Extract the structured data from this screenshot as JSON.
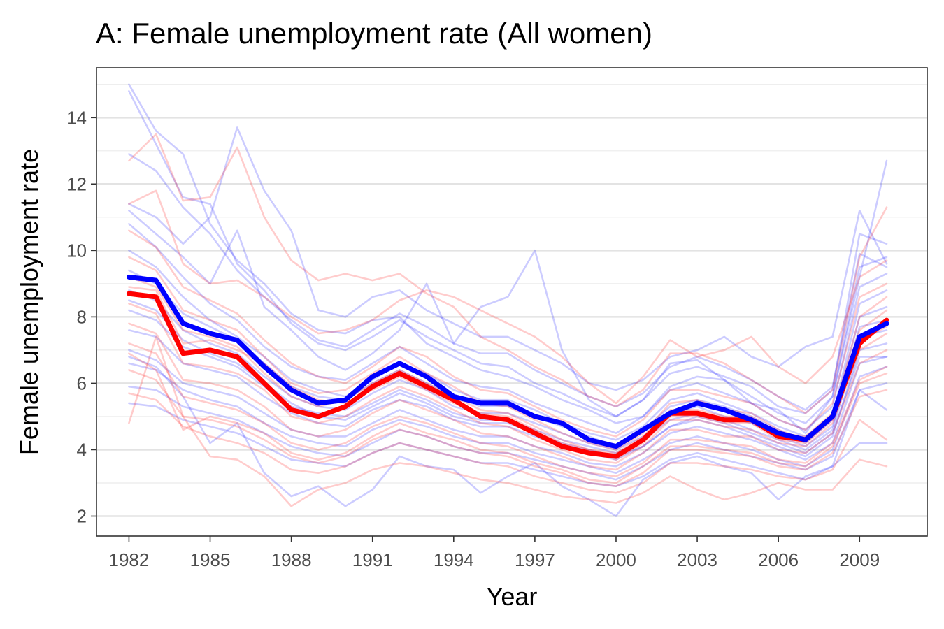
{
  "chart_data": {
    "type": "line",
    "title": "A: Female unemployment rate (All women)",
    "xlabel": "Year",
    "ylabel": "Female unemployment rate",
    "xlim": [
      1980.8,
      2011.5
    ],
    "ylim": [
      1.4,
      15.5
    ],
    "x_ticks": [
      1982,
      1985,
      1988,
      1991,
      1994,
      1997,
      2000,
      2003,
      2006,
      2009
    ],
    "y_ticks": [
      2,
      4,
      6,
      8,
      10,
      12,
      14
    ],
    "grid": true,
    "legend": "none",
    "x": [
      1982,
      1983,
      1984,
      1985,
      1986,
      1987,
      1988,
      1989,
      1990,
      1991,
      1992,
      1993,
      1994,
      1995,
      1996,
      1997,
      1998,
      1999,
      2000,
      2001,
      2002,
      2003,
      2004,
      2005,
      2006,
      2007,
      2008,
      2009,
      2010
    ],
    "series": [
      {
        "color": "#ff0000",
        "emphasis": true,
        "values": [
          8.7,
          8.6,
          6.9,
          7.0,
          6.8,
          6.0,
          5.2,
          5.0,
          5.3,
          5.9,
          6.3,
          5.9,
          5.5,
          5.0,
          4.9,
          4.5,
          4.1,
          3.9,
          3.8,
          4.3,
          5.1,
          5.1,
          4.9,
          4.9,
          4.4,
          4.3,
          5.0,
          7.2,
          7.9
        ]
      },
      {
        "color": "#0000ff",
        "emphasis": true,
        "values": [
          9.2,
          9.1,
          7.8,
          7.5,
          7.3,
          6.5,
          5.8,
          5.4,
          5.5,
          6.2,
          6.6,
          6.2,
          5.6,
          5.4,
          5.4,
          5.0,
          4.8,
          4.3,
          4.1,
          4.6,
          5.1,
          5.4,
          5.2,
          4.9,
          4.5,
          4.3,
          5.0,
          7.4,
          7.8
        ]
      },
      {
        "color": "#0000ff",
        "values": [
          15.0,
          13.6,
          12.9,
          10.8,
          9.7,
          9.0,
          8.1,
          7.6,
          7.5,
          7.9,
          8.0,
          7.2,
          6.8,
          6.4,
          6.2,
          5.9,
          5.5,
          5.2,
          4.8,
          5.0,
          5.9,
          6.2,
          6.1,
          5.6,
          5.1,
          4.8,
          5.6,
          9.5,
          9.8
        ]
      },
      {
        "color": "#0000ff",
        "values": [
          14.8,
          13.2,
          11.6,
          11.4,
          9.6,
          8.8,
          7.8,
          7.2,
          7.0,
          7.4,
          7.9,
          7.4,
          7.0,
          6.6,
          6.5,
          6.0,
          5.7,
          5.3,
          5.0,
          5.5,
          6.3,
          6.5,
          6.2,
          5.9,
          5.3,
          5.1,
          5.8,
          10.5,
          10.2
        ]
      },
      {
        "color": "#0000ff",
        "values": [
          11.4,
          11.0,
          10.2,
          11.0,
          13.7,
          11.8,
          10.6,
          8.2,
          8.0,
          8.6,
          8.8,
          8.2,
          7.8,
          7.4,
          7.4,
          7.0,
          6.6,
          6.0,
          5.8,
          6.1,
          6.8,
          7.0,
          7.4,
          6.8,
          6.5,
          7.1,
          7.4,
          11.2,
          9.6
        ]
      },
      {
        "color": "#0000ff",
        "values": [
          11.2,
          10.5,
          9.8,
          9.0,
          10.6,
          8.3,
          7.6,
          6.8,
          6.4,
          6.9,
          7.6,
          9.0,
          7.2,
          8.3,
          8.6,
          10.0,
          7.0,
          5.5,
          5.0,
          5.5,
          6.6,
          6.7,
          6.1,
          5.4,
          5.2,
          4.5,
          5.6,
          9.2,
          12.7
        ]
      },
      {
        "color": "#0000ff",
        "values": [
          10.8,
          10.1,
          9.2,
          8.4,
          7.9,
          7.1,
          6.5,
          6.2,
          6.1,
          6.6,
          7.1,
          6.6,
          6.1,
          5.9,
          5.8,
          5.4,
          5.1,
          4.8,
          4.5,
          5.0,
          5.8,
          6.0,
          5.7,
          5.4,
          4.9,
          4.6,
          5.3,
          8.9,
          9.3
        ]
      },
      {
        "color": "#0000ff",
        "values": [
          10.0,
          9.5,
          8.6,
          7.9,
          7.4,
          6.8,
          6.1,
          5.8,
          5.6,
          6.1,
          6.6,
          6.3,
          5.8,
          5.5,
          5.5,
          5.2,
          4.8,
          4.5,
          4.3,
          4.7,
          5.5,
          5.7,
          5.4,
          5.1,
          4.7,
          4.4,
          5.0,
          8.4,
          8.8
        ]
      },
      {
        "color": "#0000ff",
        "values": [
          9.4,
          9.0,
          8.1,
          7.7,
          7.3,
          6.6,
          5.9,
          5.6,
          5.5,
          6.0,
          6.4,
          6.0,
          5.6,
          5.3,
          5.3,
          5.0,
          4.7,
          4.4,
          4.1,
          4.6,
          5.3,
          5.5,
          5.3,
          5.0,
          4.6,
          4.2,
          4.9,
          8.0,
          8.3
        ]
      },
      {
        "color": "#0000ff",
        "values": [
          8.8,
          8.5,
          7.6,
          7.2,
          6.9,
          6.2,
          5.6,
          5.3,
          5.2,
          5.7,
          6.1,
          5.8,
          5.3,
          5.1,
          5.1,
          4.8,
          4.5,
          4.2,
          4.0,
          4.4,
          5.1,
          5.3,
          5.0,
          4.8,
          4.4,
          4.1,
          4.7,
          7.7,
          7.9
        ]
      },
      {
        "color": "#0000ff",
        "values": [
          8.2,
          7.9,
          7.1,
          6.8,
          6.5,
          5.9,
          5.3,
          5.1,
          5.0,
          5.4,
          5.8,
          5.5,
          5.1,
          4.9,
          4.9,
          4.6,
          4.3,
          4.1,
          3.9,
          4.3,
          4.9,
          5.1,
          4.9,
          4.6,
          4.3,
          4.0,
          4.6,
          7.4,
          7.6
        ]
      },
      {
        "color": "#0000ff",
        "values": [
          7.6,
          7.4,
          6.6,
          6.4,
          6.2,
          5.6,
          5.1,
          4.8,
          4.7,
          5.2,
          5.5,
          5.3,
          4.9,
          4.7,
          4.7,
          4.4,
          4.1,
          3.9,
          3.7,
          4.1,
          4.7,
          4.9,
          4.7,
          4.4,
          4.1,
          3.8,
          4.4,
          7.0,
          7.2
        ]
      },
      {
        "color": "#0000ff",
        "values": [
          7.0,
          6.7,
          6.0,
          5.8,
          5.6,
          5.1,
          4.6,
          4.4,
          4.4,
          4.8,
          5.2,
          4.9,
          4.6,
          4.4,
          4.4,
          4.1,
          3.9,
          3.6,
          3.5,
          3.9,
          4.5,
          4.7,
          4.5,
          4.3,
          4.0,
          3.7,
          4.2,
          6.6,
          6.8
        ]
      },
      {
        "color": "#0000ff",
        "values": [
          6.6,
          6.4,
          5.8,
          5.5,
          5.3,
          4.8,
          4.4,
          4.2,
          4.1,
          4.6,
          4.9,
          4.7,
          4.4,
          4.2,
          4.2,
          3.9,
          3.7,
          3.5,
          3.3,
          3.7,
          4.2,
          4.4,
          4.2,
          4.0,
          3.7,
          3.5,
          4.0,
          6.2,
          6.5
        ]
      },
      {
        "color": "#0000ff",
        "values": [
          5.9,
          5.8,
          5.3,
          5.1,
          4.9,
          4.5,
          4.1,
          3.9,
          3.8,
          4.2,
          4.6,
          4.4,
          4.1,
          3.9,
          3.9,
          3.7,
          3.5,
          3.3,
          3.1,
          3.5,
          4.0,
          4.2,
          4.0,
          3.8,
          3.6,
          3.4,
          3.8,
          5.8,
          6.0
        ]
      },
      {
        "color": "#0000ff",
        "values": [
          5.4,
          5.3,
          4.9,
          4.7,
          4.5,
          4.1,
          3.7,
          3.6,
          3.5,
          3.9,
          4.2,
          4.0,
          3.8,
          3.6,
          3.6,
          3.4,
          3.2,
          3.0,
          2.9,
          3.2,
          3.7,
          3.9,
          3.7,
          3.5,
          3.3,
          3.1,
          3.5,
          4.2,
          4.2
        ]
      },
      {
        "color": "#0000ff",
        "values": [
          12.9,
          12.4,
          11.3,
          10.5,
          9.4,
          8.6,
          7.9,
          7.3,
          7.1,
          7.6,
          8.1,
          7.7,
          7.2,
          6.9,
          6.9,
          6.4,
          6.0,
          5.6,
          5.3,
          5.7,
          6.5,
          6.8,
          6.5,
          6.1,
          5.6,
          5.2,
          5.9,
          9.9,
          9.5
        ]
      },
      {
        "color": "#0000ff",
        "values": [
          8.5,
          8.2,
          7.3,
          6.9,
          6.6,
          6.0,
          5.4,
          5.0,
          4.9,
          5.3,
          5.7,
          5.4,
          5.0,
          4.8,
          4.8,
          4.5,
          4.2,
          4.0,
          3.8,
          4.1,
          4.7,
          5.0,
          4.8,
          4.5,
          4.2,
          3.9,
          4.5,
          6.8,
          6.8
        ]
      },
      {
        "color": "#0000ff",
        "values": [
          6.8,
          6.5,
          5.6,
          4.2,
          4.8,
          3.3,
          2.6,
          2.9,
          2.3,
          2.8,
          3.8,
          3.5,
          3.4,
          2.7,
          3.2,
          3.6,
          2.9,
          2.5,
          2.0,
          3.1,
          3.6,
          3.8,
          3.5,
          3.3,
          2.5,
          3.2,
          3.5,
          5.8,
          5.2
        ]
      },
      {
        "color": "#ff0000",
        "values": [
          12.7,
          13.5,
          11.5,
          11.6,
          13.1,
          11.0,
          9.7,
          9.1,
          9.3,
          9.1,
          9.3,
          8.7,
          8.3,
          7.4,
          7.0,
          6.5,
          6.1,
          5.6,
          5.3,
          5.8,
          6.9,
          6.9,
          6.6,
          6.1,
          5.6,
          5.1,
          5.8,
          9.8,
          11.3
        ]
      },
      {
        "color": "#ff0000",
        "values": [
          11.4,
          11.8,
          9.6,
          9.0,
          9.1,
          8.6,
          8.0,
          7.5,
          7.6,
          7.9,
          8.5,
          8.8,
          8.6,
          8.2,
          7.8,
          7.4,
          6.8,
          6.0,
          5.4,
          6.2,
          7.3,
          6.8,
          7.0,
          7.4,
          6.5,
          6.0,
          6.8,
          9.2,
          9.7
        ]
      },
      {
        "color": "#ff0000",
        "values": [
          10.6,
          10.1,
          8.9,
          8.5,
          8.1,
          7.3,
          6.6,
          6.2,
          6.0,
          6.5,
          7.1,
          6.8,
          6.2,
          5.8,
          5.7,
          5.3,
          4.9,
          4.6,
          4.4,
          4.9,
          5.8,
          5.8,
          5.6,
          5.4,
          4.9,
          4.6,
          5.4,
          8.6,
          9.0
        ]
      },
      {
        "color": "#ff0000",
        "values": [
          9.8,
          9.4,
          8.2,
          7.9,
          7.6,
          6.8,
          6.0,
          5.7,
          5.8,
          6.3,
          6.8,
          6.3,
          5.9,
          5.4,
          5.3,
          4.9,
          4.5,
          4.2,
          4.0,
          4.5,
          5.4,
          5.5,
          5.2,
          5.1,
          4.6,
          4.3,
          5.0,
          8.0,
          8.6
        ]
      },
      {
        "color": "#ff0000",
        "values": [
          9.2,
          8.9,
          7.6,
          7.4,
          7.1,
          6.3,
          5.6,
          5.3,
          5.5,
          6.0,
          6.4,
          6.0,
          5.6,
          5.2,
          5.1,
          4.7,
          4.3,
          4.0,
          3.9,
          4.4,
          5.2,
          5.2,
          5.0,
          5.0,
          4.5,
          4.4,
          5.1,
          7.6,
          8.2
        ]
      },
      {
        "color": "#ff0000",
        "values": [
          8.4,
          8.1,
          6.6,
          6.5,
          6.3,
          5.8,
          5.0,
          4.8,
          5.0,
          5.5,
          5.9,
          5.6,
          5.2,
          4.8,
          4.7,
          4.3,
          4.0,
          3.7,
          3.6,
          4.1,
          4.9,
          4.9,
          4.7,
          4.6,
          4.2,
          4.1,
          4.8,
          7.0,
          7.5
        ]
      },
      {
        "color": "#ff0000",
        "values": [
          7.8,
          7.5,
          6.1,
          6.0,
          5.8,
          5.3,
          4.6,
          4.4,
          4.6,
          5.1,
          5.5,
          5.2,
          4.9,
          4.5,
          4.4,
          4.1,
          3.8,
          3.5,
          3.4,
          3.9,
          4.6,
          4.6,
          4.4,
          4.4,
          4.0,
          3.9,
          4.5,
          6.6,
          7.0
        ]
      },
      {
        "color": "#ff0000",
        "values": [
          7.2,
          6.9,
          5.6,
          5.4,
          5.2,
          4.8,
          4.2,
          4.0,
          4.2,
          4.7,
          5.0,
          4.8,
          4.5,
          4.2,
          4.1,
          3.8,
          3.5,
          3.3,
          3.2,
          3.6,
          4.3,
          4.3,
          4.2,
          4.1,
          3.7,
          3.6,
          4.2,
          6.1,
          6.5
        ]
      },
      {
        "color": "#ff0000",
        "values": [
          6.4,
          6.1,
          5.0,
          4.9,
          4.7,
          4.3,
          3.8,
          3.6,
          3.8,
          4.3,
          4.6,
          4.4,
          4.1,
          3.9,
          3.8,
          3.5,
          3.3,
          3.0,
          2.9,
          3.3,
          4.0,
          4.0,
          3.9,
          3.8,
          3.5,
          3.4,
          3.9,
          5.6,
          5.8
        ]
      },
      {
        "color": "#ff0000",
        "values": [
          5.7,
          5.5,
          4.7,
          4.4,
          4.2,
          3.9,
          3.4,
          3.3,
          3.5,
          3.9,
          4.2,
          4.0,
          3.8,
          3.6,
          3.5,
          3.2,
          3.0,
          2.8,
          2.7,
          3.0,
          3.6,
          3.6,
          3.5,
          3.4,
          3.2,
          3.1,
          3.4,
          4.9,
          4.3
        ]
      },
      {
        "color": "#ff0000",
        "values": [
          4.8,
          7.4,
          5.0,
          3.8,
          3.7,
          3.2,
          2.3,
          2.8,
          3.0,
          3.4,
          3.6,
          3.5,
          3.3,
          3.1,
          3.0,
          2.8,
          2.6,
          2.5,
          2.4,
          2.7,
          3.2,
          2.8,
          2.5,
          2.7,
          3.0,
          2.8,
          2.8,
          3.7,
          3.5
        ]
      },
      {
        "color": "#ff0000",
        "values": [
          8.9,
          8.8,
          7.2,
          7.3,
          7.0,
          6.6,
          5.9,
          5.5,
          5.4,
          5.8,
          6.2,
          5.8,
          5.4,
          5.1,
          5.0,
          4.6,
          4.2,
          4.0,
          3.7,
          4.2,
          5.0,
          5.0,
          4.8,
          4.8,
          4.3,
          4.2,
          4.9,
          7.3,
          7.7
        ]
      },
      {
        "color": "#ff0000",
        "values": [
          6.9,
          6.4,
          4.6,
          5.0,
          4.8,
          4.5,
          3.9,
          3.7,
          3.9,
          4.4,
          4.8,
          4.5,
          4.3,
          4.0,
          3.9,
          3.6,
          3.4,
          3.1,
          3.0,
          3.5,
          4.1,
          4.1,
          4.0,
          3.9,
          3.6,
          3.5,
          4.1,
          6.0,
          6.3
        ]
      }
    ]
  }
}
